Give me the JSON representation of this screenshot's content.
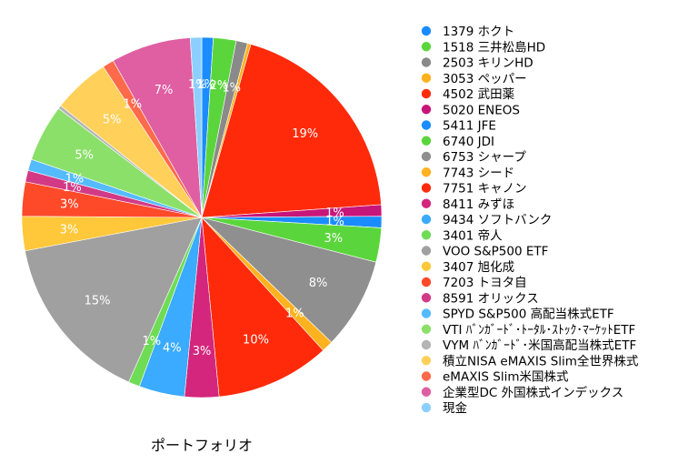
{
  "chart_data": {
    "type": "pie",
    "caption": "ポートフォリオ",
    "start_angle_deg": 0,
    "direction": "clockwise",
    "slices": [
      {
        "name": "1379 ホクト",
        "value": 1,
        "label": "1%",
        "color": "#1a8cff"
      },
      {
        "name": "1518 三井松島HD",
        "value": 2,
        "label": "2%",
        "color": "#5ad63c"
      },
      {
        "name": "2503 キリンHD",
        "value": 1,
        "label": "1%",
        "color": "#8a8a8a"
      },
      {
        "name": "3053 ペッパー",
        "value": 0.3,
        "label": "",
        "color": "#ffb21f"
      },
      {
        "name": "4502 武田薬",
        "value": 19,
        "label": "19%",
        "color": "#ff2a0a"
      },
      {
        "name": "5020 ENEOS",
        "value": 1,
        "label": "1%",
        "color": "#c8157a"
      },
      {
        "name": "5411 JFE",
        "value": 1,
        "label": "1%",
        "color": "#1a8cff"
      },
      {
        "name": "6740 JDI",
        "value": 3,
        "label": "3%",
        "color": "#5ad63c"
      },
      {
        "name": "6753 シャープ",
        "value": 8,
        "label": "8%",
        "color": "#8f8f8f"
      },
      {
        "name": "7743 シード",
        "value": 1,
        "label": "1%",
        "color": "#ffb21f"
      },
      {
        "name": "7751 キャノン",
        "value": 10,
        "label": "10%",
        "color": "#ff2a0a"
      },
      {
        "name": "8411 みずほ",
        "value": 3,
        "label": "3%",
        "color": "#d4267c"
      },
      {
        "name": "9434 ソフトバンク",
        "value": 4,
        "label": "4%",
        "color": "#3aabff"
      },
      {
        "name": "3401 帝人",
        "value": 1,
        "label": "1%",
        "color": "#6fdc55"
      },
      {
        "name": "VOO S&P500 ETF",
        "value": 15,
        "label": "15%",
        "color": "#a0a0a0"
      },
      {
        "name": "3407 旭化成",
        "value": 3,
        "label": "3%",
        "color": "#ffc83a"
      },
      {
        "name": "7203 トヨタ自",
        "value": 3,
        "label": "3%",
        "color": "#ff4a2a"
      },
      {
        "name": "8591 オリックス",
        "value": 1,
        "label": "1%",
        "color": "#d23a86"
      },
      {
        "name": "SPYD S&P500 高配当株式ETF",
        "value": 1,
        "label": "1%",
        "color": "#55bbff"
      },
      {
        "name": "VTI ﾊﾞﾝｶﾞｰﾄﾞ･ﾄｰﾀﾙ･ｽﾄｯｸ･ﾏｰｹｯﾄETF",
        "value": 5,
        "label": "5%",
        "color": "#8be06a"
      },
      {
        "name": "VYM ﾊﾞﾝｶﾞｰﾄﾞ･米国高配当株式ETF",
        "value": 0.3,
        "label": "",
        "color": "#b4b4b4"
      },
      {
        "name": "積立NISA eMAXIS Slim全世界株式",
        "value": 5,
        "label": "5%",
        "color": "#ffd05a"
      },
      {
        "name": "eMAXIS Slim米国株式",
        "value": 1,
        "label": "1%",
        "color": "#ff6a4a"
      },
      {
        "name": "企業型DC 外国株式インデックス",
        "value": 7,
        "label": "7%",
        "color": "#df5fa2"
      },
      {
        "name": "現金",
        "value": 1,
        "label": "1%",
        "color": "#8ccfff"
      }
    ]
  }
}
